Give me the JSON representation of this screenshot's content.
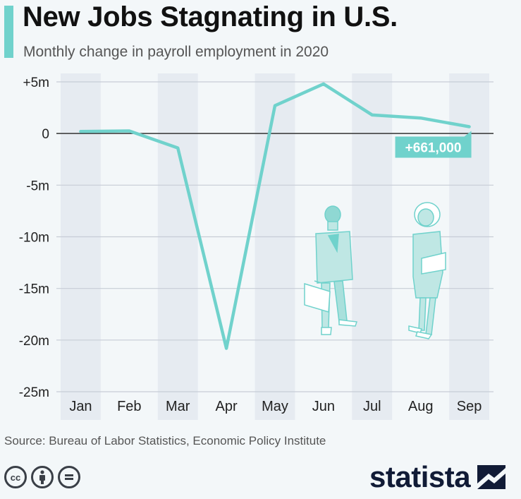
{
  "header": {
    "title": "New Jobs Stagnating in U.S.",
    "subtitle": "Monthly change in payroll employment in 2020"
  },
  "colors": {
    "line": "#70d2cc",
    "band": "#e6ebf1",
    "accent_bar": "#70d2cc",
    "brand": "#111b36"
  },
  "chart_data": {
    "type": "line",
    "title": "New Jobs Stagnating in U.S.",
    "subtitle": "Monthly change in payroll employment in 2020",
    "categories": [
      "Jan",
      "Feb",
      "Mar",
      "Apr",
      "May",
      "Jun",
      "Jul",
      "Aug",
      "Sep"
    ],
    "series": [
      {
        "values": [
          0.2,
          0.25,
          -1.4,
          -20.8,
          2.7,
          4.8,
          1.8,
          1.5,
          0.661
        ]
      }
    ],
    "ylim": [
      -25,
      5
    ],
    "yticks": [
      5,
      0,
      -5,
      -10,
      -15,
      -20,
      -25
    ],
    "ytick_labels": [
      "+5m",
      "0",
      "-5m",
      "-10m",
      "-15m",
      "-20m",
      "-25m"
    ],
    "annotation": "+661,000",
    "grid": true,
    "alternating_bands": true
  },
  "footer": {
    "source": "Source: Bureau of Labor Statistics, Economic Policy Institute",
    "brand": "statista",
    "license_icons": [
      "cc-icon",
      "by-icon",
      "nd-icon"
    ]
  }
}
